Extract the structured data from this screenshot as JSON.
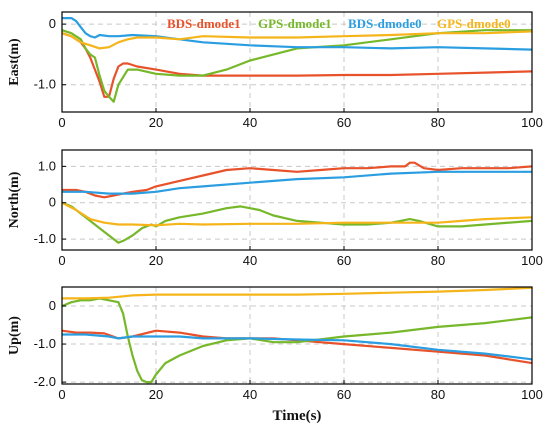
{
  "chart_data": [
    {
      "type": "line",
      "panel": "east",
      "ylabel": "East(m)",
      "xlabel": "",
      "xlim": [
        0,
        100
      ],
      "ylim": [
        -1.45,
        0.2
      ],
      "xticks": [
        "0",
        "20",
        "40",
        "60",
        "80",
        "100"
      ],
      "yticks": [
        {
          "value": 0,
          "label": "0"
        },
        {
          "value": -1.0,
          "label": "-1.0"
        }
      ],
      "grid": true,
      "legend": {
        "placement": "top",
        "entries": [
          "BDS-dmode1",
          "GPS-dmode1",
          "BDS-dmode0",
          "GPS-dmode0"
        ]
      },
      "series": [
        {
          "name": "BDS-dmode1",
          "color": "#e8522b",
          "x": [
            0,
            2,
            4,
            5,
            6,
            7,
            8,
            9,
            10,
            11,
            12,
            13,
            14,
            16,
            20,
            25,
            30,
            40,
            50,
            60,
            70,
            80,
            90,
            100
          ],
          "y": [
            -0.15,
            -0.2,
            -0.3,
            -0.4,
            -0.55,
            -0.75,
            -0.95,
            -1.2,
            -1.2,
            -0.9,
            -0.7,
            -0.65,
            -0.65,
            -0.7,
            -0.75,
            -0.82,
            -0.85,
            -0.85,
            -0.85,
            -0.84,
            -0.84,
            -0.82,
            -0.8,
            -0.78
          ]
        },
        {
          "name": "GPS-dmode1",
          "color": "#76b82a",
          "x": [
            0,
            2,
            4,
            5,
            6,
            7,
            8,
            9,
            10,
            11,
            12,
            14,
            16,
            20,
            25,
            30,
            35,
            40,
            50,
            60,
            70,
            75,
            80,
            90,
            100
          ],
          "y": [
            -0.1,
            -0.15,
            -0.25,
            -0.4,
            -0.5,
            -0.55,
            -0.85,
            -1.1,
            -1.2,
            -1.28,
            -1.0,
            -0.75,
            -0.75,
            -0.82,
            -0.85,
            -0.85,
            -0.75,
            -0.6,
            -0.4,
            -0.35,
            -0.25,
            -0.2,
            -0.15,
            -0.1,
            -0.1
          ]
        },
        {
          "name": "BDS-dmode0",
          "color": "#2a9ee0",
          "x": [
            0,
            2,
            3,
            4,
            5,
            6,
            7,
            8,
            10,
            12,
            15,
            20,
            25,
            30,
            40,
            50,
            60,
            70,
            80,
            90,
            100
          ],
          "y": [
            0.1,
            0.1,
            0.05,
            -0.05,
            -0.15,
            -0.2,
            -0.22,
            -0.18,
            -0.2,
            -0.2,
            -0.18,
            -0.2,
            -0.25,
            -0.3,
            -0.35,
            -0.38,
            -0.38,
            -0.4,
            -0.38,
            -0.4,
            -0.42
          ]
        },
        {
          "name": "GPS-dmode0",
          "color": "#f5b51a",
          "x": [
            0,
            2,
            4,
            6,
            8,
            10,
            12,
            14,
            16,
            20,
            25,
            30,
            40,
            50,
            60,
            70,
            80,
            90,
            100
          ],
          "y": [
            -0.15,
            -0.2,
            -0.3,
            -0.35,
            -0.4,
            -0.38,
            -0.3,
            -0.25,
            -0.22,
            -0.22,
            -0.25,
            -0.2,
            -0.22,
            -0.22,
            -0.2,
            -0.18,
            -0.15,
            -0.15,
            -0.12
          ]
        }
      ]
    },
    {
      "type": "line",
      "panel": "north",
      "ylabel": "North(m)",
      "xlabel": "",
      "xlim": [
        0,
        100
      ],
      "ylim": [
        -1.3,
        1.45
      ],
      "xticks": [
        "0",
        "20",
        "40",
        "60",
        "80",
        "100"
      ],
      "yticks": [
        {
          "value": 1.0,
          "label": "1.0"
        },
        {
          "value": 0,
          "label": "0"
        },
        {
          "value": -1.0,
          "label": "-1.0"
        }
      ],
      "grid": true,
      "series": [
        {
          "name": "BDS-dmode1",
          "color": "#e8522b",
          "x": [
            0,
            3,
            5,
            7,
            9,
            11,
            13,
            15,
            18,
            20,
            25,
            30,
            35,
            40,
            45,
            50,
            55,
            60,
            65,
            70,
            73,
            74,
            75,
            77,
            80,
            85,
            90,
            95,
            100
          ],
          "y": [
            0.35,
            0.35,
            0.3,
            0.2,
            0.15,
            0.2,
            0.25,
            0.3,
            0.35,
            0.45,
            0.6,
            0.75,
            0.9,
            0.95,
            0.9,
            0.85,
            0.9,
            0.95,
            0.95,
            1.0,
            1.0,
            1.1,
            1.1,
            0.95,
            0.9,
            0.95,
            0.95,
            0.95,
            1.0
          ]
        },
        {
          "name": "GPS-dmode1",
          "color": "#76b82a",
          "x": [
            0,
            2,
            4,
            6,
            8,
            10,
            12,
            13,
            15,
            17,
            19,
            20,
            22,
            25,
            30,
            35,
            38,
            42,
            45,
            50,
            55,
            60,
            65,
            70,
            72,
            74,
            76,
            80,
            85,
            90,
            100
          ],
          "y": [
            0.0,
            -0.1,
            -0.3,
            -0.5,
            -0.7,
            -0.9,
            -1.1,
            -1.05,
            -0.9,
            -0.7,
            -0.6,
            -0.65,
            -0.5,
            -0.4,
            -0.3,
            -0.15,
            -0.1,
            -0.2,
            -0.35,
            -0.5,
            -0.55,
            -0.6,
            -0.6,
            -0.55,
            -0.5,
            -0.45,
            -0.5,
            -0.65,
            -0.65,
            -0.6,
            -0.5
          ]
        },
        {
          "name": "BDS-dmode0",
          "color": "#2a9ee0",
          "x": [
            0,
            5,
            10,
            15,
            20,
            25,
            30,
            40,
            50,
            60,
            70,
            80,
            90,
            100
          ],
          "y": [
            0.3,
            0.3,
            0.25,
            0.25,
            0.3,
            0.4,
            0.45,
            0.55,
            0.65,
            0.7,
            0.8,
            0.85,
            0.85,
            0.85
          ]
        },
        {
          "name": "GPS-dmode0",
          "color": "#f5b51a",
          "x": [
            0,
            3,
            6,
            9,
            12,
            15,
            20,
            25,
            30,
            40,
            50,
            60,
            70,
            75,
            80,
            85,
            90,
            100
          ],
          "y": [
            0.0,
            -0.2,
            -0.45,
            -0.55,
            -0.6,
            -0.6,
            -0.62,
            -0.58,
            -0.6,
            -0.58,
            -0.58,
            -0.55,
            -0.55,
            -0.55,
            -0.55,
            -0.5,
            -0.45,
            -0.4
          ]
        }
      ]
    },
    {
      "type": "line",
      "panel": "up",
      "ylabel": "Up(m)",
      "xlabel": "Time(s)",
      "xlim": [
        0,
        100
      ],
      "ylim": [
        -2.05,
        0.5
      ],
      "xticks": [
        "0",
        "20",
        "40",
        "60",
        "80",
        "100"
      ],
      "yticks": [
        {
          "value": 0,
          "label": "0"
        },
        {
          "value": -1.0,
          "label": "-1.0"
        },
        {
          "value": -2.0,
          "label": "-2.0"
        }
      ],
      "grid": true,
      "series": [
        {
          "name": "BDS-dmode1",
          "color": "#e8522b",
          "x": [
            0,
            3,
            6,
            9,
            12,
            15,
            20,
            25,
            30,
            35,
            40,
            45,
            50,
            60,
            70,
            80,
            90,
            100
          ],
          "y": [
            -0.65,
            -0.7,
            -0.7,
            -0.72,
            -0.85,
            -0.8,
            -0.65,
            -0.7,
            -0.8,
            -0.85,
            -0.85,
            -0.85,
            -0.9,
            -1.0,
            -1.1,
            -1.2,
            -1.3,
            -1.5
          ]
        },
        {
          "name": "GPS-dmode1",
          "color": "#76b82a",
          "x": [
            0,
            2,
            4,
            6,
            8,
            10,
            12,
            13,
            14,
            15,
            16,
            17,
            18,
            19,
            20,
            22,
            25,
            30,
            35,
            40,
            45,
            50,
            60,
            70,
            80,
            90,
            100
          ],
          "y": [
            0.0,
            0.1,
            0.15,
            0.15,
            0.2,
            0.15,
            0.1,
            -0.2,
            -0.8,
            -1.3,
            -1.7,
            -1.95,
            -2.0,
            -2.0,
            -1.8,
            -1.5,
            -1.3,
            -1.05,
            -0.9,
            -0.85,
            -0.95,
            -0.95,
            -0.8,
            -0.7,
            -0.55,
            -0.45,
            -0.3
          ]
        },
        {
          "name": "BDS-dmode0",
          "color": "#2a9ee0",
          "x": [
            0,
            5,
            10,
            12,
            15,
            20,
            25,
            30,
            40,
            50,
            60,
            70,
            80,
            90,
            100
          ],
          "y": [
            -0.75,
            -0.75,
            -0.8,
            -0.85,
            -0.8,
            -0.8,
            -0.8,
            -0.85,
            -0.85,
            -0.88,
            -0.9,
            -1.0,
            -1.15,
            -1.25,
            -1.4
          ]
        },
        {
          "name": "GPS-dmode0",
          "color": "#f5b51a",
          "x": [
            0,
            5,
            10,
            15,
            20,
            30,
            40,
            50,
            60,
            70,
            80,
            90,
            100
          ],
          "y": [
            0.2,
            0.2,
            0.22,
            0.28,
            0.3,
            0.3,
            0.3,
            0.3,
            0.32,
            0.35,
            0.38,
            0.42,
            0.48
          ]
        }
      ]
    }
  ]
}
